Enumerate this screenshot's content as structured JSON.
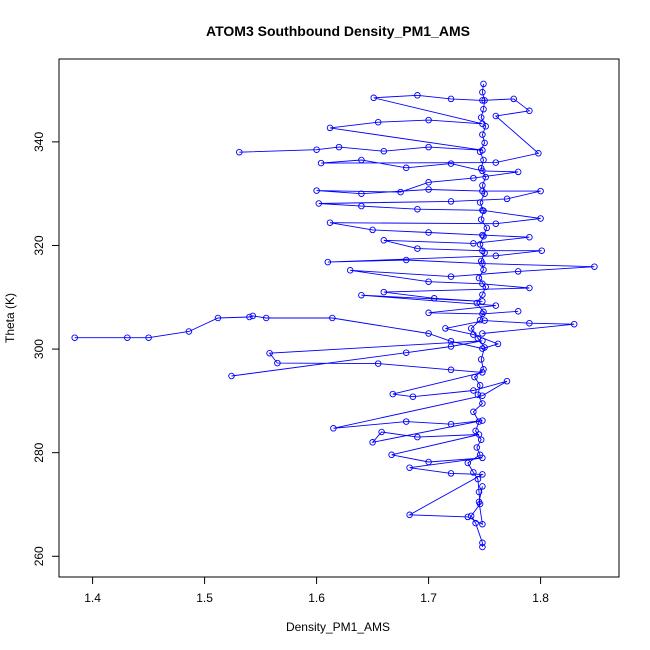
{
  "chart_data": {
    "type": "scatter",
    "title": "ATOM3 Southbound Density_PM1_AMS",
    "xlabel": "Density_PM1_AMS",
    "ylabel": "Theta (K)",
    "xlim": [
      1.37,
      1.87
    ],
    "ylim": [
      256,
      356
    ],
    "xticks": [
      1.4,
      1.5,
      1.6,
      1.7,
      1.8
    ],
    "xtick_labels": [
      "1.4",
      "1.5",
      "1.6",
      "1.7",
      "1.8"
    ],
    "yticks": [
      260,
      280,
      300,
      320,
      340
    ],
    "ytick_labels": [
      "260",
      "280",
      "300",
      "320",
      "340"
    ],
    "grid": false,
    "line_color": "#0000ff",
    "marker": "open-circle",
    "series": [
      {
        "style": "points-connected",
        "points": [
          [
            1.748,
            261.8
          ],
          [
            1.748,
            262.6
          ],
          [
            1.742,
            266.4
          ],
          [
            1.738,
            267.8
          ],
          [
            1.746,
            270.1
          ],
          [
            1.745,
            272.4
          ],
          [
            1.744,
            274.9
          ],
          [
            1.74,
            276.2
          ],
          [
            1.735,
            278.0
          ],
          [
            1.746,
            279.6
          ],
          [
            1.743,
            281.0
          ],
          [
            1.747,
            282.5
          ],
          [
            1.742,
            284.2
          ],
          [
            1.745,
            286.0
          ],
          [
            1.74,
            287.9
          ],
          [
            1.748,
            289.5
          ],
          [
            1.744,
            291.2
          ],
          [
            1.746,
            293.0
          ],
          [
            1.741,
            294.6
          ],
          [
            1.749,
            296.1
          ],
          [
            1.747,
            298.0
          ],
          [
            1.75,
            300.3
          ],
          [
            1.744,
            302.1
          ],
          [
            1.738,
            304.0
          ],
          [
            1.746,
            305.6
          ],
          [
            1.749,
            307.2
          ],
          [
            1.743,
            308.9
          ],
          [
            1.748,
            310.5
          ],
          [
            1.751,
            312.0
          ],
          [
            1.745,
            313.7
          ],
          [
            1.749,
            315.3
          ],
          [
            1.747,
            317.0
          ],
          [
            1.75,
            318.6
          ],
          [
            1.746,
            320.2
          ],
          [
            1.749,
            321.8
          ],
          [
            1.752,
            323.4
          ],
          [
            1.747,
            325.0
          ],
          [
            1.749,
            326.7
          ],
          [
            1.746,
            328.3
          ],
          [
            1.75,
            330.0
          ],
          [
            1.748,
            331.6
          ],
          [
            1.751,
            333.2
          ],
          [
            1.747,
            334.9
          ],
          [
            1.749,
            336.5
          ],
          [
            1.746,
            338.1
          ],
          [
            1.75,
            339.8
          ],
          [
            1.748,
            341.4
          ],
          [
            1.751,
            343.0
          ],
          [
            1.747,
            344.7
          ],
          [
            1.749,
            346.3
          ],
          [
            1.75,
            348.0
          ],
          [
            1.748,
            349.6
          ],
          [
            1.749,
            351.2
          ]
        ]
      },
      {
        "style": "points-connected",
        "points": [
          [
            1.384,
            302.2
          ],
          [
            1.431,
            302.2
          ],
          [
            1.45,
            302.2
          ],
          [
            1.486,
            303.4
          ],
          [
            1.512,
            306.0
          ],
          [
            1.54,
            306.2
          ],
          [
            1.543,
            306.4
          ],
          [
            1.555,
            306.0
          ],
          [
            1.614,
            306.0
          ],
          [
            1.7,
            303.0
          ],
          [
            1.72,
            301.5
          ],
          [
            1.748,
            300.1
          ],
          [
            1.762,
            301.0
          ],
          [
            1.74,
            302.8
          ],
          [
            1.715,
            304.0
          ],
          [
            1.75,
            305.5
          ],
          [
            1.79,
            305.0
          ],
          [
            1.83,
            304.8
          ],
          [
            1.748,
            303.0
          ]
        ]
      },
      {
        "style": "points-connected",
        "points": [
          [
            1.524,
            294.8
          ],
          [
            1.68,
            299.3
          ],
          [
            1.72,
            300.5
          ],
          [
            1.748,
            301.6
          ],
          [
            1.558,
            299.2
          ],
          [
            1.565,
            297.3
          ],
          [
            1.655,
            297.2
          ],
          [
            1.72,
            296.0
          ],
          [
            1.748,
            295.5
          ],
          [
            1.668,
            291.3
          ],
          [
            1.686,
            290.8
          ],
          [
            1.74,
            292.0
          ],
          [
            1.77,
            293.8
          ],
          [
            1.748,
            291.0
          ],
          [
            1.615,
            284.7
          ],
          [
            1.68,
            286.0
          ],
          [
            1.72,
            285.5
          ],
          [
            1.748,
            286.2
          ],
          [
            1.65,
            282.0
          ],
          [
            1.658,
            284.0
          ],
          [
            1.69,
            283.0
          ],
          [
            1.745,
            283.5
          ],
          [
            1.667,
            279.6
          ],
          [
            1.7,
            278.2
          ],
          [
            1.748,
            279.0
          ],
          [
            1.683,
            277.1
          ],
          [
            1.72,
            276.0
          ],
          [
            1.748,
            275.8
          ],
          [
            1.683,
            268.0
          ],
          [
            1.735,
            267.6
          ],
          [
            1.748,
            266.2
          ],
          [
            1.745,
            270.5
          ],
          [
            1.748,
            273.5
          ]
        ]
      },
      {
        "style": "points-connected",
        "points": [
          [
            1.531,
            338.0
          ],
          [
            1.6,
            338.5
          ],
          [
            1.62,
            339.0
          ],
          [
            1.66,
            338.2
          ],
          [
            1.7,
            339.0
          ],
          [
            1.748,
            338.4
          ],
          [
            1.612,
            342.7
          ],
          [
            1.655,
            343.8
          ],
          [
            1.7,
            344.2
          ],
          [
            1.748,
            343.5
          ],
          [
            1.651,
            348.5
          ],
          [
            1.69,
            349.0
          ],
          [
            1.72,
            348.3
          ],
          [
            1.748,
            348.0
          ],
          [
            1.776,
            348.3
          ],
          [
            1.79,
            346.0
          ],
          [
            1.76,
            345.0
          ],
          [
            1.798,
            337.8
          ],
          [
            1.76,
            336.0
          ],
          [
            1.604,
            335.9
          ],
          [
            1.64,
            336.5
          ],
          [
            1.68,
            335.0
          ],
          [
            1.72,
            335.8
          ],
          [
            1.748,
            334.4
          ],
          [
            1.78,
            334.2
          ],
          [
            1.74,
            333.0
          ],
          [
            1.7,
            332.2
          ],
          [
            1.675,
            330.3
          ],
          [
            1.6,
            330.6
          ],
          [
            1.64,
            330.0
          ],
          [
            1.7,
            330.8
          ],
          [
            1.748,
            330.5
          ],
          [
            1.8,
            330.5
          ],
          [
            1.77,
            329.0
          ],
          [
            1.72,
            328.5
          ],
          [
            1.602,
            328.1
          ],
          [
            1.64,
            327.6
          ],
          [
            1.69,
            327.0
          ],
          [
            1.748,
            326.8
          ],
          [
            1.8,
            325.2
          ],
          [
            1.76,
            324.2
          ],
          [
            1.612,
            324.4
          ],
          [
            1.65,
            323.0
          ],
          [
            1.7,
            322.5
          ],
          [
            1.748,
            322.0
          ],
          [
            1.79,
            321.6
          ],
          [
            1.74,
            320.4
          ],
          [
            1.66,
            321.0
          ],
          [
            1.69,
            319.4
          ],
          [
            1.748,
            319.0
          ],
          [
            1.801,
            319.0
          ],
          [
            1.76,
            318.0
          ],
          [
            1.61,
            316.8
          ],
          [
            1.68,
            317.2
          ],
          [
            1.748,
            316.5
          ],
          [
            1.848,
            315.9
          ],
          [
            1.78,
            315.0
          ],
          [
            1.72,
            314.0
          ],
          [
            1.63,
            315.2
          ],
          [
            1.7,
            313.0
          ],
          [
            1.748,
            312.6
          ],
          [
            1.79,
            311.8
          ],
          [
            1.66,
            311.0
          ],
          [
            1.705,
            309.8
          ],
          [
            1.748,
            309.2
          ],
          [
            1.64,
            310.4
          ],
          [
            1.76,
            308.4
          ],
          [
            1.7,
            307.0
          ],
          [
            1.748,
            306.8
          ],
          [
            1.78,
            307.3
          ]
        ]
      }
    ]
  }
}
